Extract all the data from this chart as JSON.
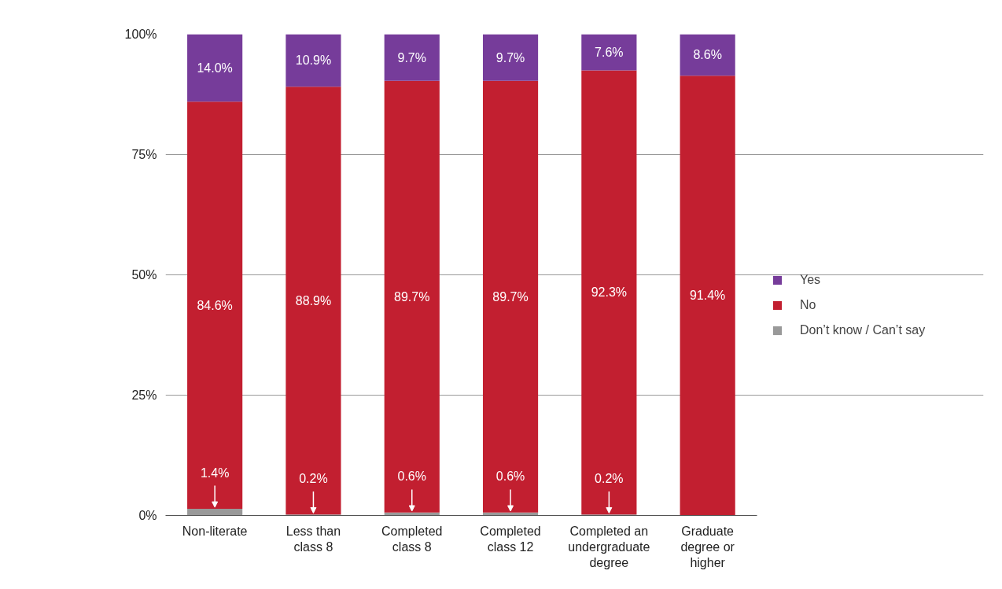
{
  "chart_data": {
    "type": "bar",
    "stacked": true,
    "categories": [
      "Non-literate",
      "Less than class 8",
      "Completed class 8",
      "Completed class 12",
      "Completed an undergraduate degree",
      "Graduate degree or higher"
    ],
    "series": [
      {
        "name": "Don’t know / Can’t say",
        "color": "#999999",
        "values": [
          1.4,
          0.2,
          0.6,
          0.6,
          0.2,
          null
        ],
        "value_labels": [
          "1.4%",
          "0.2%",
          "0.6%",
          "0.6%",
          "0.2%",
          null
        ]
      },
      {
        "name": "No",
        "color": "#c21f30",
        "values": [
          84.6,
          88.9,
          89.7,
          89.7,
          92.3,
          91.4
        ],
        "value_labels": [
          "84.6%",
          "88.9%",
          "89.7%",
          "89.7%",
          "92.3%",
          "91.4%"
        ]
      },
      {
        "name": "Yes",
        "color": "#763c9a",
        "values": [
          14.0,
          10.9,
          9.7,
          9.7,
          7.6,
          8.6
        ],
        "value_labels": [
          "14.0%",
          "10.9%",
          "9.7%",
          "9.7%",
          "7.6%",
          "8.6%"
        ]
      }
    ],
    "ylim": [
      0,
      100
    ],
    "yticks": [
      {
        "value": 0,
        "label": "0%"
      },
      {
        "value": 25,
        "label": "25%"
      },
      {
        "value": 50,
        "label": "50%"
      },
      {
        "value": 75,
        "label": "75%"
      },
      {
        "value": 100,
        "label": "100%"
      }
    ],
    "grid": "y",
    "legend": "right"
  }
}
